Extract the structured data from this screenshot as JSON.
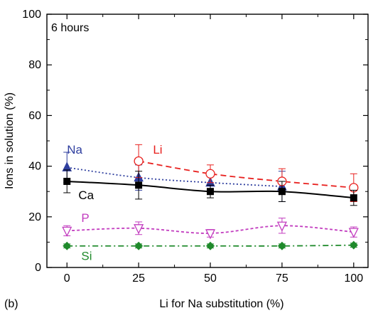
{
  "chart_data": {
    "type": "line",
    "panel_label": "(b)",
    "annotation": "6 hours",
    "xlabel": "Li for Na substitution (%)",
    "ylabel": "Ions in solution (%)",
    "xlim": [
      -7,
      105
    ],
    "ylim": [
      0,
      100
    ],
    "x_ticks": [
      0,
      25,
      50,
      75,
      100
    ],
    "y_ticks": [
      0,
      20,
      40,
      60,
      80,
      100
    ],
    "grid": false,
    "series": [
      {
        "name": "Na",
        "color": "#2f3f9f",
        "marker": "triangle-filled",
        "line": "dotted",
        "x": [
          0,
          25,
          50,
          75
        ],
        "values": [
          39.5,
          35.5,
          33.5,
          32
        ],
        "err": [
          6,
          5,
          3,
          6
        ],
        "label_at": [
          0,
          45
        ]
      },
      {
        "name": "Li",
        "color": "#e8201e",
        "marker": "circle-open",
        "line": "dashed",
        "x": [
          25,
          50,
          75,
          100
        ],
        "values": [
          42,
          37,
          34,
          31.5
        ],
        "err": [
          6.5,
          3.5,
          5,
          5.5
        ],
        "label_at": [
          30,
          45
        ]
      },
      {
        "name": "Ca",
        "color": "#000000",
        "marker": "square-filled",
        "line": "solid",
        "x": [
          0,
          25,
          50,
          75,
          100
        ],
        "values": [
          34,
          32.5,
          30,
          30,
          27.5
        ],
        "err": [
          4.5,
          5.5,
          2.5,
          4,
          3
        ],
        "label_at": [
          4,
          27
        ]
      },
      {
        "name": "P",
        "color": "#c23cbf",
        "marker": "triangle-down-open",
        "line": "short-dashed",
        "x": [
          0,
          25,
          50,
          75,
          100
        ],
        "values": [
          14.5,
          15.5,
          13.5,
          16.5,
          14
        ],
        "err": [
          2,
          2.5,
          1.5,
          3,
          2
        ],
        "label_at": [
          5,
          18
        ]
      },
      {
        "name": "Si",
        "color": "#1f8a2b",
        "marker": "diamond-filled",
        "line": "dash-dot",
        "x": [
          0,
          25,
          50,
          75,
          100
        ],
        "values": [
          8.5,
          8.5,
          8.5,
          8.5,
          8.8
        ],
        "err": [
          0.8,
          0.8,
          0.8,
          0.8,
          0.8
        ],
        "label_at": [
          5,
          3
        ]
      }
    ]
  }
}
